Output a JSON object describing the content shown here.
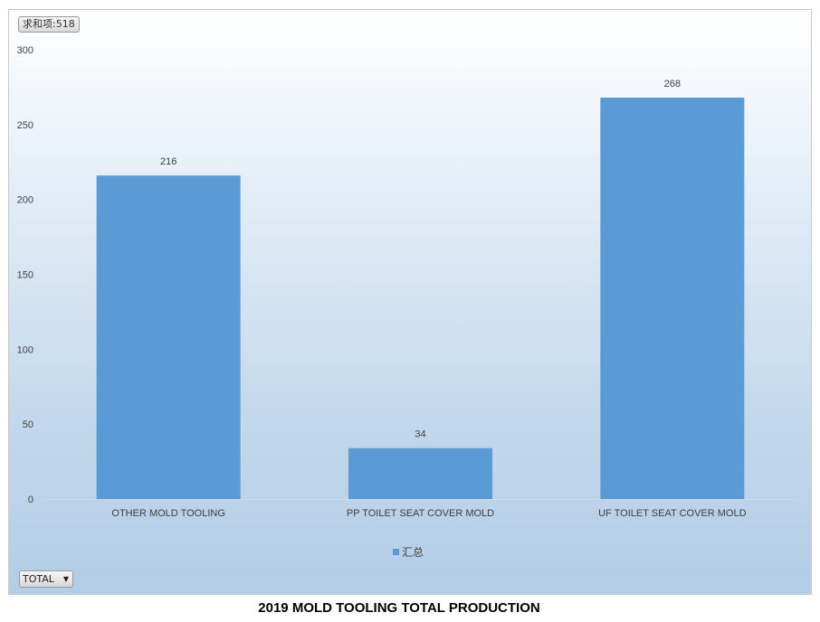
{
  "chart_data": {
    "type": "bar",
    "title": "2019 MOLD TOOLING TOTAL PRODUCTION",
    "categories": [
      "OTHER MOLD TOOLING",
      "PP TOILET SEAT COVER MOLD",
      "UF TOILET SEAT COVER MOLD"
    ],
    "series": [
      {
        "name": "汇总",
        "values": [
          216,
          34,
          268
        ],
        "color": "#5b9bd5"
      }
    ],
    "ylim": [
      0,
      300
    ],
    "yticks": [
      0,
      50,
      100,
      150,
      200,
      250,
      300
    ],
    "data_labels": true,
    "legend": "bottom-center",
    "grid": false
  },
  "pivot": {
    "field_button": "求和项:518",
    "filter_label": "TOTAL"
  }
}
